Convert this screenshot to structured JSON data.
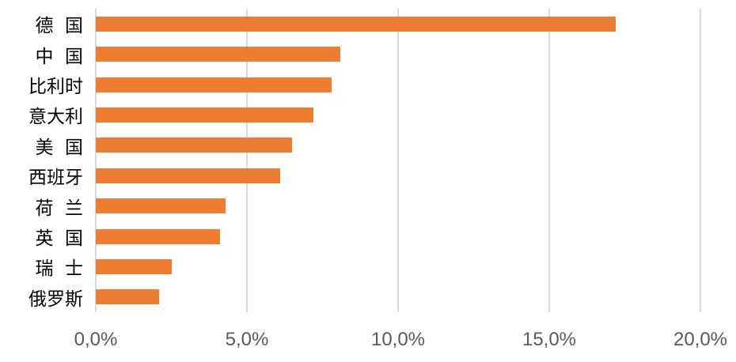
{
  "chart_data": {
    "type": "bar",
    "orientation": "horizontal",
    "title": "",
    "xlabel": "",
    "ylabel": "",
    "categories": [
      "德国",
      "中国",
      "比利时",
      "意大利",
      "美国",
      "西班牙",
      "荷兰",
      "英国",
      "瑞士",
      "俄罗斯"
    ],
    "display_labels": [
      "德 国",
      "中 国",
      "比利时",
      "意大利",
      "美 国",
      "西班牙",
      "荷 兰",
      "英 国",
      "瑞 士",
      "俄罗斯"
    ],
    "values": [
      17.2,
      8.1,
      7.8,
      7.2,
      6.5,
      6.1,
      4.3,
      4.1,
      2.5,
      2.1
    ],
    "unit": "%",
    "xlim": [
      0,
      20
    ],
    "x_tick_values": [
      0,
      5,
      10,
      15,
      20
    ],
    "x_tick_labels": [
      "0,0%",
      "5,0%",
      "10,0%",
      "15,0%",
      "20,0%"
    ],
    "grid": "vertical-only",
    "legend": "none",
    "colors": {
      "bar": "#ED7D31",
      "gridline": "#D9D9D9",
      "axis_line": "#D9D9D9",
      "x_tick_text": "#595959",
      "category_text": "#000000",
      "background": "#FFFFFF"
    }
  }
}
